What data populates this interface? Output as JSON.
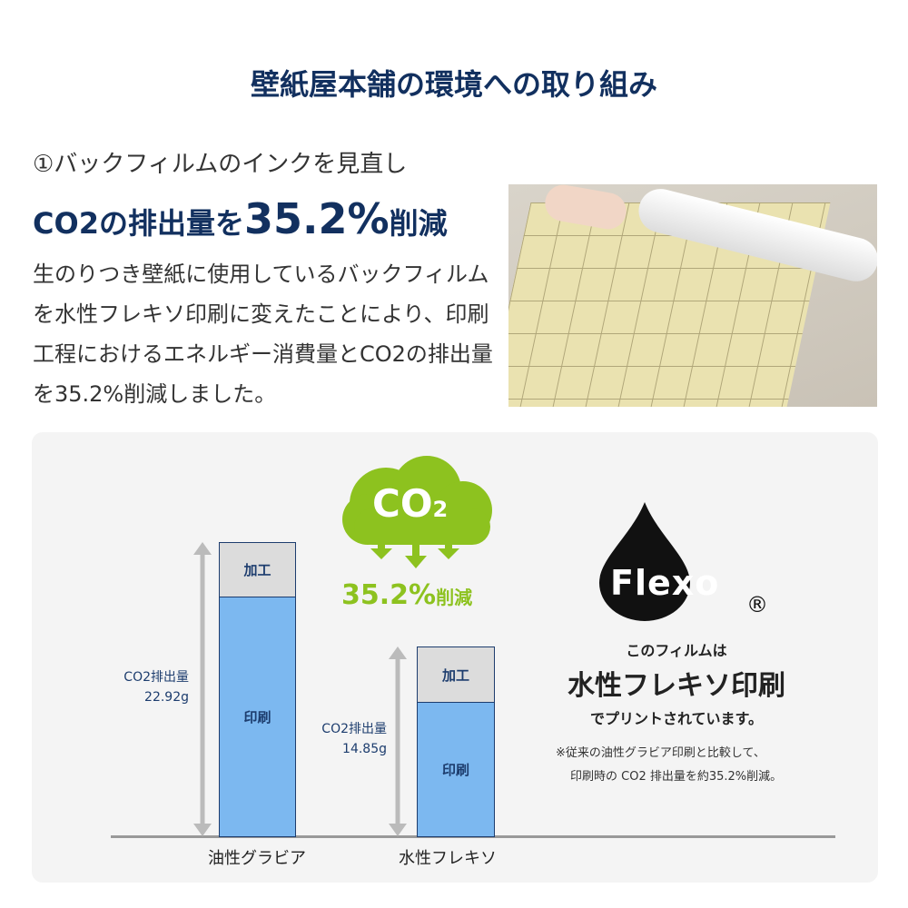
{
  "title": "壁紙屋本舗の環境への取り組み",
  "section": {
    "subtitle": "①バックフィルムのインクを見直し",
    "headline_pre": "CO2の排出量を",
    "headline_value": "35.2%",
    "headline_post": "削減",
    "body": "生のりつき壁紙に使用しているバックフィルムを水性フレキソ印刷に変えたことにより、印刷工程におけるエネルギー消費量とCO2の排出量を35.2%削減しました。"
  },
  "chart": {
    "bars": [
      {
        "category": "油性グラビア",
        "total_label": "CO2排出量",
        "total_value": "22.92g",
        "top_segment": "加工",
        "bottom_segment": "印刷"
      },
      {
        "category": "水性フレキソ",
        "total_label": "CO2排出量",
        "total_value": "14.85g",
        "top_segment": "加工",
        "bottom_segment": "印刷"
      }
    ],
    "cloud_text": "CO",
    "cloud_sub": "2",
    "reduction": "35.2%",
    "reduction_suffix": "削減"
  },
  "flexo": {
    "logo_text": "Flexo",
    "registered": "®",
    "line1": "このフィルムは",
    "line2": "水性フレキソ印刷",
    "line3": "でプリントされています。",
    "note1": "※従来の油性グラビア印刷と比較して、",
    "note2": "印刷時の CO2 排出量を約35.2%削減。"
  },
  "colors": {
    "navy": "#12305f",
    "green": "#8dc21f",
    "bar_blue": "#7cb8f0",
    "bar_gray": "#dcdcdc"
  }
}
